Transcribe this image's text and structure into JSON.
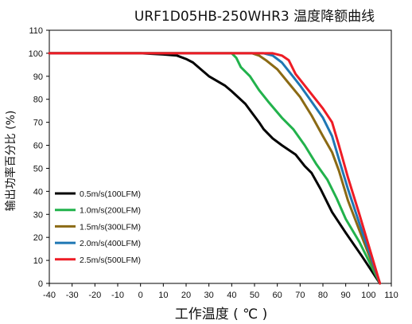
{
  "chart_data": {
    "type": "line",
    "title": "URF1D05HB-250WHR3 温度降额曲线",
    "xlabel": "工作温度 ( ℃ )",
    "ylabel": "输出功率百分比 (%)",
    "xlim": [
      -40,
      110
    ],
    "ylim": [
      0,
      110
    ],
    "xticks": [
      -40,
      -30,
      -20,
      -10,
      0,
      10,
      20,
      30,
      40,
      50,
      60,
      70,
      80,
      90,
      100,
      110
    ],
    "yticks": [
      0,
      10,
      20,
      30,
      40,
      50,
      60,
      70,
      80,
      90,
      100,
      110
    ],
    "grid": false,
    "legend_position": "lower-left",
    "series": [
      {
        "name": "0.5m/s(100LFM)",
        "color": "#000000",
        "points": [
          [
            -40,
            100
          ],
          [
            0,
            100
          ],
          [
            10,
            99.5
          ],
          [
            16,
            99
          ],
          [
            20,
            97.5
          ],
          [
            23,
            96
          ],
          [
            30,
            90
          ],
          [
            37,
            86
          ],
          [
            40,
            83.5
          ],
          [
            46,
            78
          ],
          [
            49,
            74
          ],
          [
            52,
            70
          ],
          [
            54,
            67
          ],
          [
            58,
            63
          ],
          [
            62,
            60
          ],
          [
            68,
            56
          ],
          [
            72,
            51
          ],
          [
            75,
            48
          ],
          [
            79,
            41
          ],
          [
            82,
            35
          ],
          [
            84,
            31
          ],
          [
            90,
            22
          ],
          [
            97,
            12
          ],
          [
            105,
            0
          ]
        ]
      },
      {
        "name": "1.0m/s(200LFM)",
        "color": "#22b24c",
        "points": [
          [
            -40,
            100
          ],
          [
            40,
            100
          ],
          [
            42,
            98
          ],
          [
            44,
            94
          ],
          [
            48,
            90
          ],
          [
            52,
            84
          ],
          [
            56,
            79
          ],
          [
            62,
            72
          ],
          [
            67,
            67
          ],
          [
            72,
            60
          ],
          [
            77,
            52
          ],
          [
            82,
            45
          ],
          [
            86,
            37
          ],
          [
            90,
            28
          ],
          [
            96,
            18
          ],
          [
            105,
            0
          ]
        ]
      },
      {
        "name": "1.5m/s(300LFM)",
        "color": "#8b6a14",
        "points": [
          [
            -40,
            100
          ],
          [
            49,
            100
          ],
          [
            52,
            99
          ],
          [
            55,
            97
          ],
          [
            60,
            93
          ],
          [
            65,
            87
          ],
          [
            70,
            81
          ],
          [
            75,
            73
          ],
          [
            80,
            64
          ],
          [
            84,
            57
          ],
          [
            87,
            49
          ],
          [
            91,
            36
          ],
          [
            96,
            23
          ],
          [
            105,
            0
          ]
        ]
      },
      {
        "name": "2.0m/s(400LFM)",
        "color": "#1f77b4",
        "points": [
          [
            -40,
            100
          ],
          [
            54,
            100
          ],
          [
            58,
            99
          ],
          [
            62,
            96
          ],
          [
            66,
            91
          ],
          [
            70,
            86
          ],
          [
            75,
            79
          ],
          [
            80,
            72
          ],
          [
            84,
            64
          ],
          [
            87,
            54
          ],
          [
            91,
            41
          ],
          [
            96,
            26
          ],
          [
            105,
            0
          ]
        ]
      },
      {
        "name": "2.5m/s(500LFM)",
        "color": "#ee1c25",
        "points": [
          [
            -40,
            100
          ],
          [
            58,
            100
          ],
          [
            62,
            99
          ],
          [
            65,
            97
          ],
          [
            68,
            91
          ],
          [
            72,
            86
          ],
          [
            76,
            81
          ],
          [
            80,
            76
          ],
          [
            84,
            70
          ],
          [
            87,
            60
          ],
          [
            91,
            46
          ],
          [
            96,
            30
          ],
          [
            105,
            0
          ]
        ]
      }
    ]
  }
}
